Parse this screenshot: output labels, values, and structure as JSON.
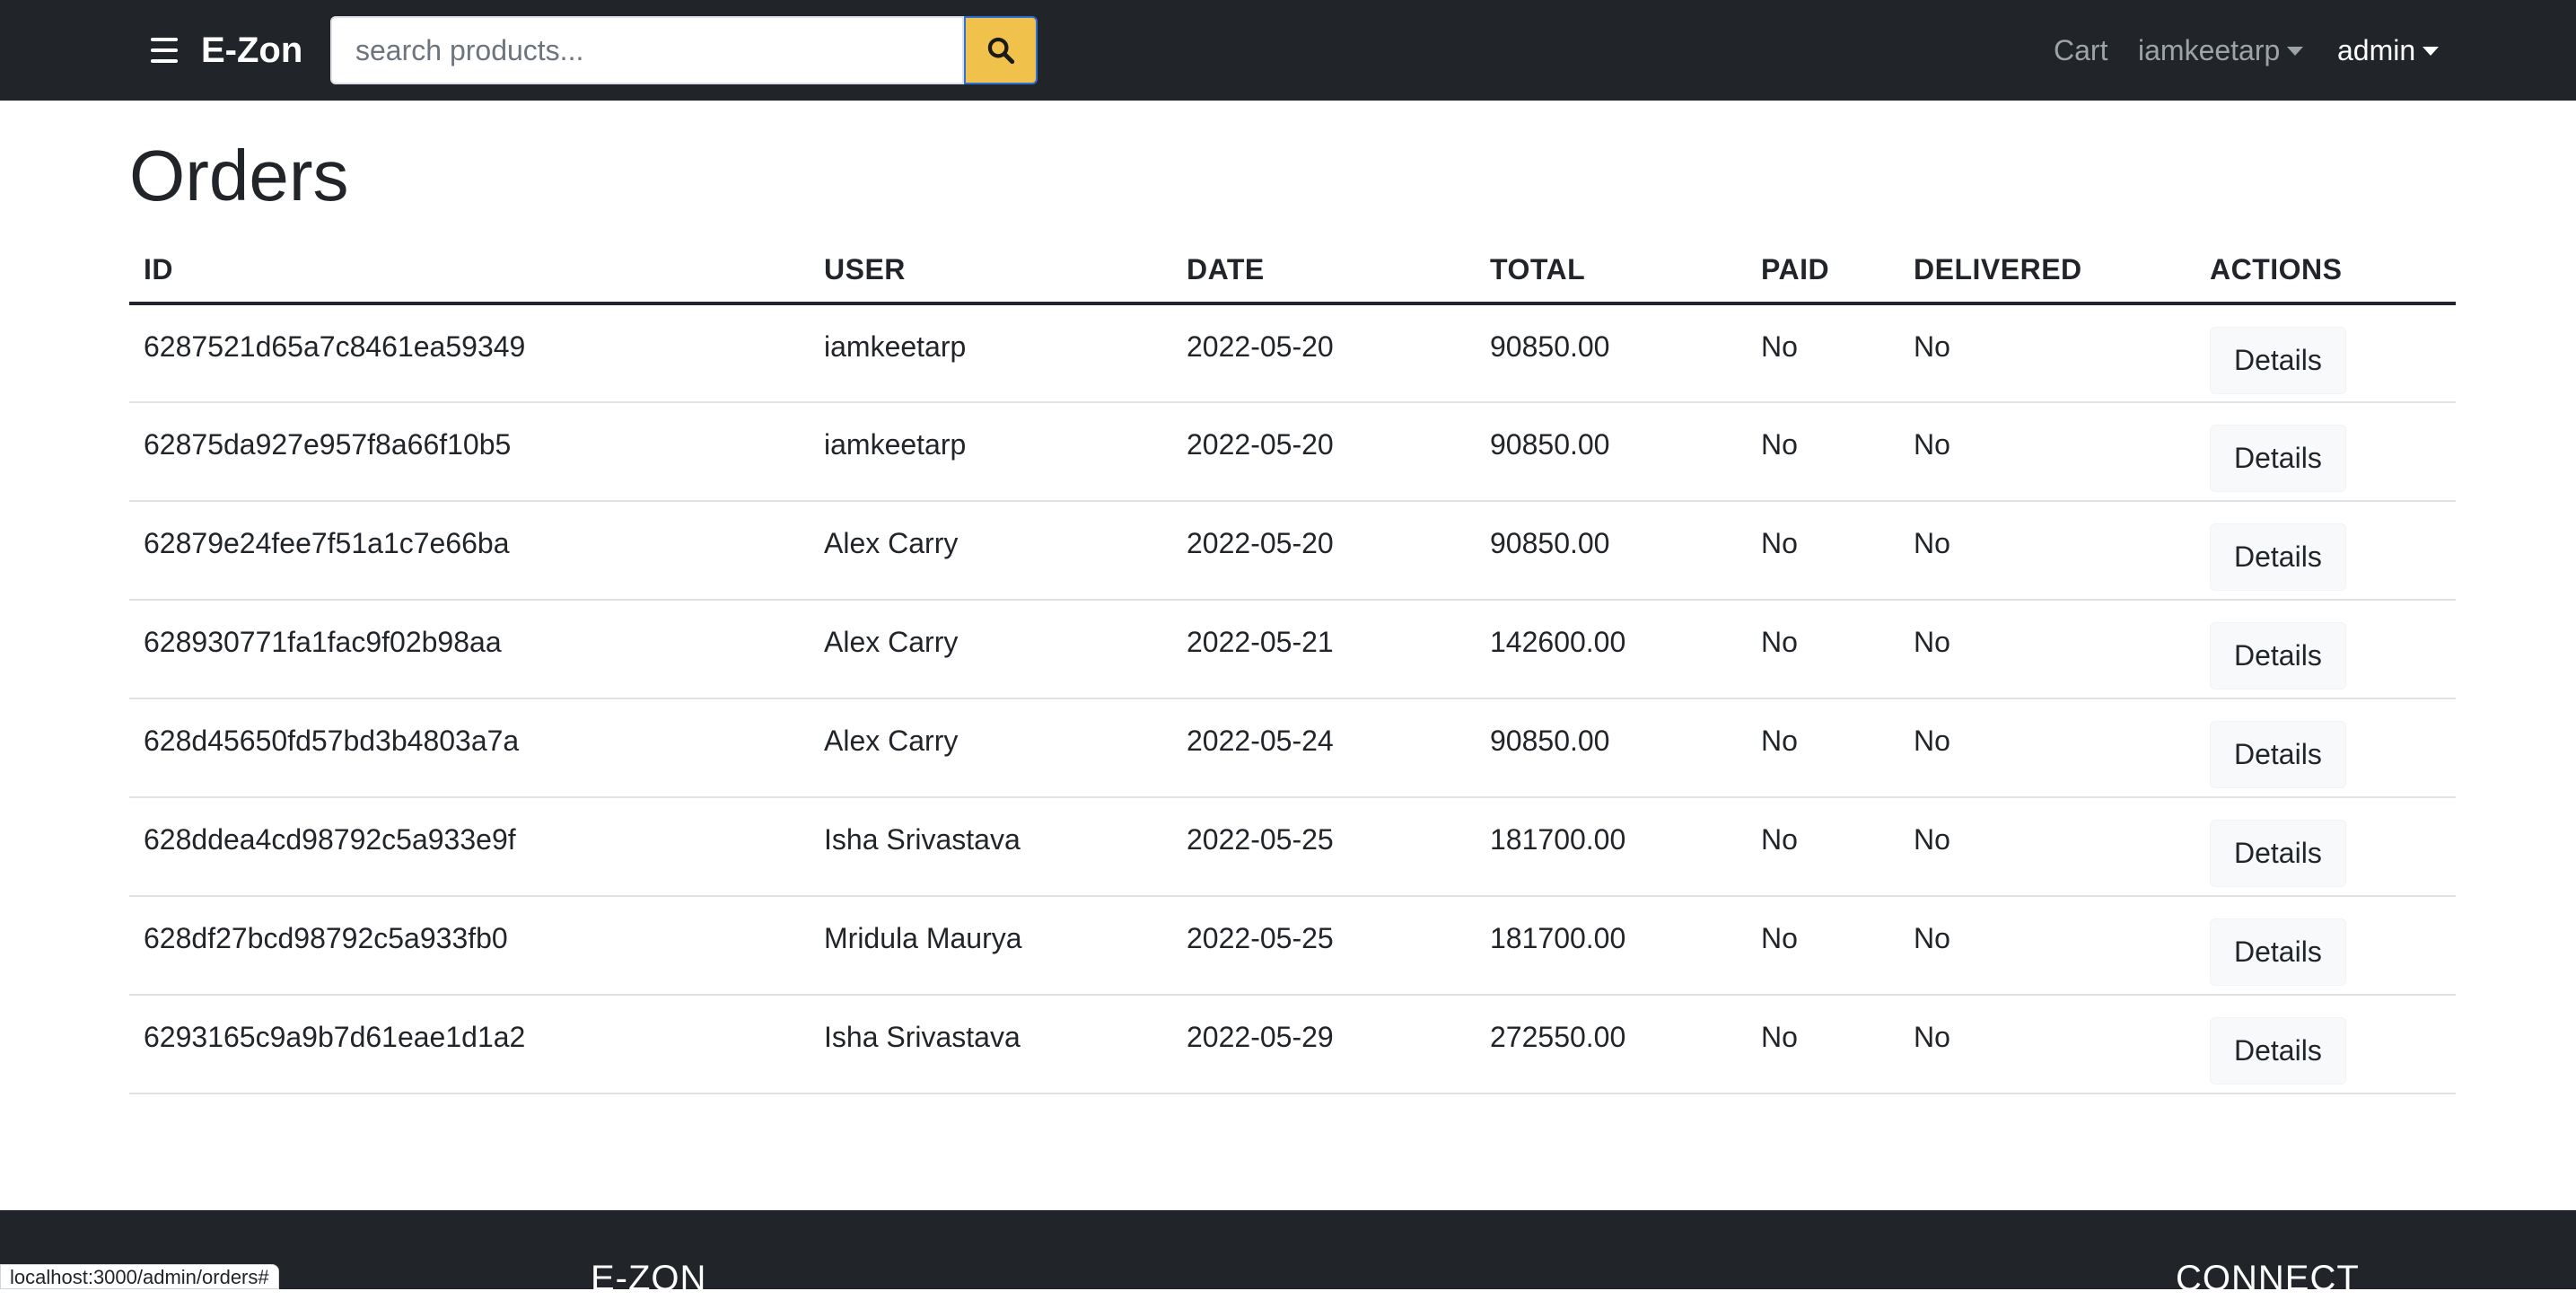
{
  "navbar": {
    "brand": "E-Zon",
    "search": {
      "placeholder": "search products...",
      "value": ""
    },
    "links": {
      "cart": "Cart",
      "user": "iamkeetarp",
      "admin": "admin"
    }
  },
  "page": {
    "title": "Orders"
  },
  "table": {
    "headers": [
      "ID",
      "USER",
      "DATE",
      "TOTAL",
      "PAID",
      "DELIVERED",
      "ACTIONS"
    ],
    "rows": [
      {
        "id": "6287521d65a7c8461ea59349",
        "user": "iamkeetarp",
        "date": "2022-05-20",
        "total": "90850.00",
        "paid": "No",
        "delivered": "No",
        "action": "Details"
      },
      {
        "id": "62875da927e957f8a66f10b5",
        "user": "iamkeetarp",
        "date": "2022-05-20",
        "total": "90850.00",
        "paid": "No",
        "delivered": "No",
        "action": "Details"
      },
      {
        "id": "62879e24fee7f51a1c7e66ba",
        "user": "Alex Carry",
        "date": "2022-05-20",
        "total": "90850.00",
        "paid": "No",
        "delivered": "No",
        "action": "Details"
      },
      {
        "id": "628930771fa1fac9f02b98aa",
        "user": "Alex Carry",
        "date": "2022-05-21",
        "total": "142600.00",
        "paid": "No",
        "delivered": "No",
        "action": "Details"
      },
      {
        "id": "628d45650fd57bd3b4803a7a",
        "user": "Alex Carry",
        "date": "2022-05-24",
        "total": "90850.00",
        "paid": "No",
        "delivered": "No",
        "action": "Details"
      },
      {
        "id": "628ddea4cd98792c5a933e9f",
        "user": "Isha Srivastava",
        "date": "2022-05-25",
        "total": "181700.00",
        "paid": "No",
        "delivered": "No",
        "action": "Details"
      },
      {
        "id": "628df27bcd98792c5a933fb0",
        "user": "Mridula Maurya",
        "date": "2022-05-25",
        "total": "181700.00",
        "paid": "No",
        "delivered": "No",
        "action": "Details"
      },
      {
        "id": "6293165c9a9b7d61eae1d1a2",
        "user": "Isha Srivastava",
        "date": "2022-05-29",
        "total": "272550.00",
        "paid": "No",
        "delivered": "No",
        "action": "Details"
      }
    ]
  },
  "footer": {
    "left_heading": "E-ZON",
    "right_heading": "CONNECT"
  },
  "status_bar": {
    "url": "localhost:3000/admin/orders#"
  },
  "colors": {
    "navbar_bg": "#212529",
    "search_button": "#f0c14b",
    "details_button_bg": "#f8f9fa"
  },
  "icons": {
    "menu": "hamburger-menu-icon",
    "search": "search-icon",
    "dropdown": "caret-down-icon"
  }
}
